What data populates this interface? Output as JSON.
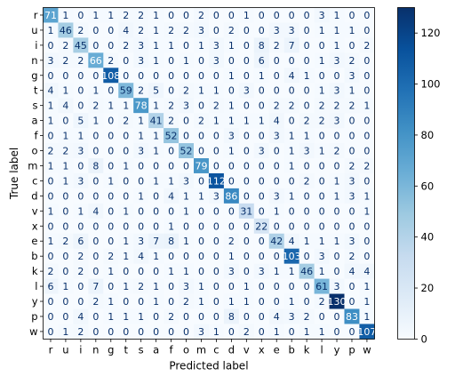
{
  "chart_data": {
    "type": "heatmap",
    "xlabel": "Predicted label",
    "ylabel": "True label",
    "labels": [
      "r",
      "u",
      "i",
      "n",
      "g",
      "t",
      "s",
      "a",
      "f",
      "o",
      "m",
      "c",
      "d",
      "v",
      "x",
      "e",
      "b",
      "k",
      "l",
      "y",
      "p",
      "w"
    ],
    "matrix": [
      [
        71,
        1,
        0,
        1,
        1,
        2,
        2,
        1,
        0,
        0,
        2,
        0,
        0,
        1,
        0,
        0,
        0,
        0,
        3,
        1,
        0,
        0
      ],
      [
        1,
        46,
        2,
        0,
        0,
        4,
        2,
        1,
        2,
        2,
        3,
        0,
        2,
        0,
        0,
        3,
        3,
        0,
        1,
        1,
        1,
        0
      ],
      [
        0,
        2,
        45,
        0,
        0,
        2,
        3,
        1,
        1,
        0,
        1,
        3,
        1,
        0,
        8,
        2,
        7,
        0,
        0,
        1,
        0,
        2
      ],
      [
        3,
        2,
        2,
        66,
        2,
        0,
        3,
        1,
        0,
        1,
        0,
        3,
        0,
        0,
        6,
        0,
        0,
        0,
        1,
        3,
        2,
        0
      ],
      [
        0,
        0,
        0,
        0,
        108,
        0,
        0,
        0,
        0,
        0,
        0,
        0,
        1,
        0,
        1,
        0,
        4,
        1,
        0,
        0,
        3,
        0
      ],
      [
        4,
        1,
        0,
        1,
        0,
        59,
        2,
        5,
        0,
        2,
        1,
        1,
        0,
        3,
        0,
        0,
        0,
        0,
        1,
        3,
        1,
        0
      ],
      [
        1,
        4,
        0,
        2,
        1,
        1,
        78,
        1,
        2,
        3,
        0,
        2,
        1,
        0,
        0,
        2,
        2,
        0,
        2,
        2,
        2,
        1
      ],
      [
        1,
        0,
        5,
        1,
        0,
        2,
        1,
        41,
        2,
        0,
        2,
        1,
        1,
        1,
        1,
        4,
        0,
        2,
        2,
        3,
        0,
        0
      ],
      [
        0,
        1,
        1,
        0,
        0,
        0,
        1,
        1,
        52,
        0,
        0,
        0,
        3,
        0,
        0,
        3,
        1,
        1,
        0,
        0,
        0,
        0
      ],
      [
        2,
        2,
        3,
        0,
        0,
        0,
        3,
        1,
        0,
        52,
        0,
        0,
        1,
        0,
        3,
        0,
        1,
        3,
        1,
        2,
        0,
        0
      ],
      [
        1,
        1,
        0,
        8,
        0,
        1,
        0,
        0,
        0,
        0,
        79,
        0,
        0,
        0,
        0,
        0,
        1,
        0,
        0,
        0,
        2,
        2
      ],
      [
        0,
        1,
        3,
        0,
        1,
        0,
        0,
        1,
        1,
        3,
        0,
        112,
        0,
        0,
        0,
        0,
        0,
        2,
        0,
        1,
        3,
        0
      ],
      [
        0,
        0,
        0,
        0,
        0,
        0,
        1,
        0,
        4,
        1,
        1,
        3,
        86,
        0,
        0,
        3,
        1,
        0,
        0,
        1,
        3,
        1
      ],
      [
        1,
        0,
        1,
        4,
        0,
        1,
        0,
        0,
        0,
        1,
        0,
        0,
        0,
        31,
        0,
        1,
        0,
        0,
        0,
        0,
        0,
        1
      ],
      [
        0,
        0,
        0,
        0,
        0,
        0,
        0,
        0,
        1,
        0,
        0,
        0,
        0,
        0,
        22,
        0,
        0,
        0,
        0,
        0,
        0,
        0
      ],
      [
        1,
        2,
        6,
        0,
        0,
        1,
        3,
        7,
        8,
        1,
        0,
        0,
        2,
        0,
        0,
        42,
        4,
        1,
        1,
        1,
        3,
        0
      ],
      [
        0,
        0,
        2,
        0,
        2,
        1,
        4,
        1,
        0,
        0,
        0,
        0,
        1,
        0,
        0,
        0,
        103,
        0,
        3,
        0,
        2,
        0
      ],
      [
        2,
        0,
        2,
        0,
        1,
        0,
        0,
        0,
        1,
        1,
        0,
        0,
        3,
        0,
        3,
        1,
        1,
        46,
        1,
        0,
        4,
        4
      ],
      [
        6,
        1,
        0,
        7,
        0,
        1,
        2,
        1,
        0,
        3,
        1,
        0,
        0,
        1,
        0,
        0,
        0,
        0,
        61,
        3,
        0,
        1
      ],
      [
        0,
        0,
        0,
        2,
        1,
        0,
        0,
        1,
        0,
        2,
        1,
        0,
        1,
        1,
        0,
        0,
        1,
        0,
        2,
        130,
        0,
        1
      ],
      [
        0,
        0,
        4,
        0,
        1,
        1,
        1,
        0,
        2,
        0,
        0,
        0,
        8,
        0,
        0,
        4,
        3,
        2,
        0,
        0,
        83,
        1
      ],
      [
        0,
        1,
        2,
        0,
        0,
        0,
        0,
        0,
        0,
        0,
        3,
        1,
        0,
        2,
        0,
        1,
        0,
        1,
        1,
        0,
        0,
        107
      ]
    ],
    "colorbar": {
      "colormap": "Blues",
      "min": 0,
      "max": 130,
      "ticks": [
        0,
        20,
        40,
        60,
        80,
        100,
        120
      ]
    },
    "text_colors": {
      "dark": "#08306b",
      "light": "#ffffff"
    },
    "grid": false
  }
}
